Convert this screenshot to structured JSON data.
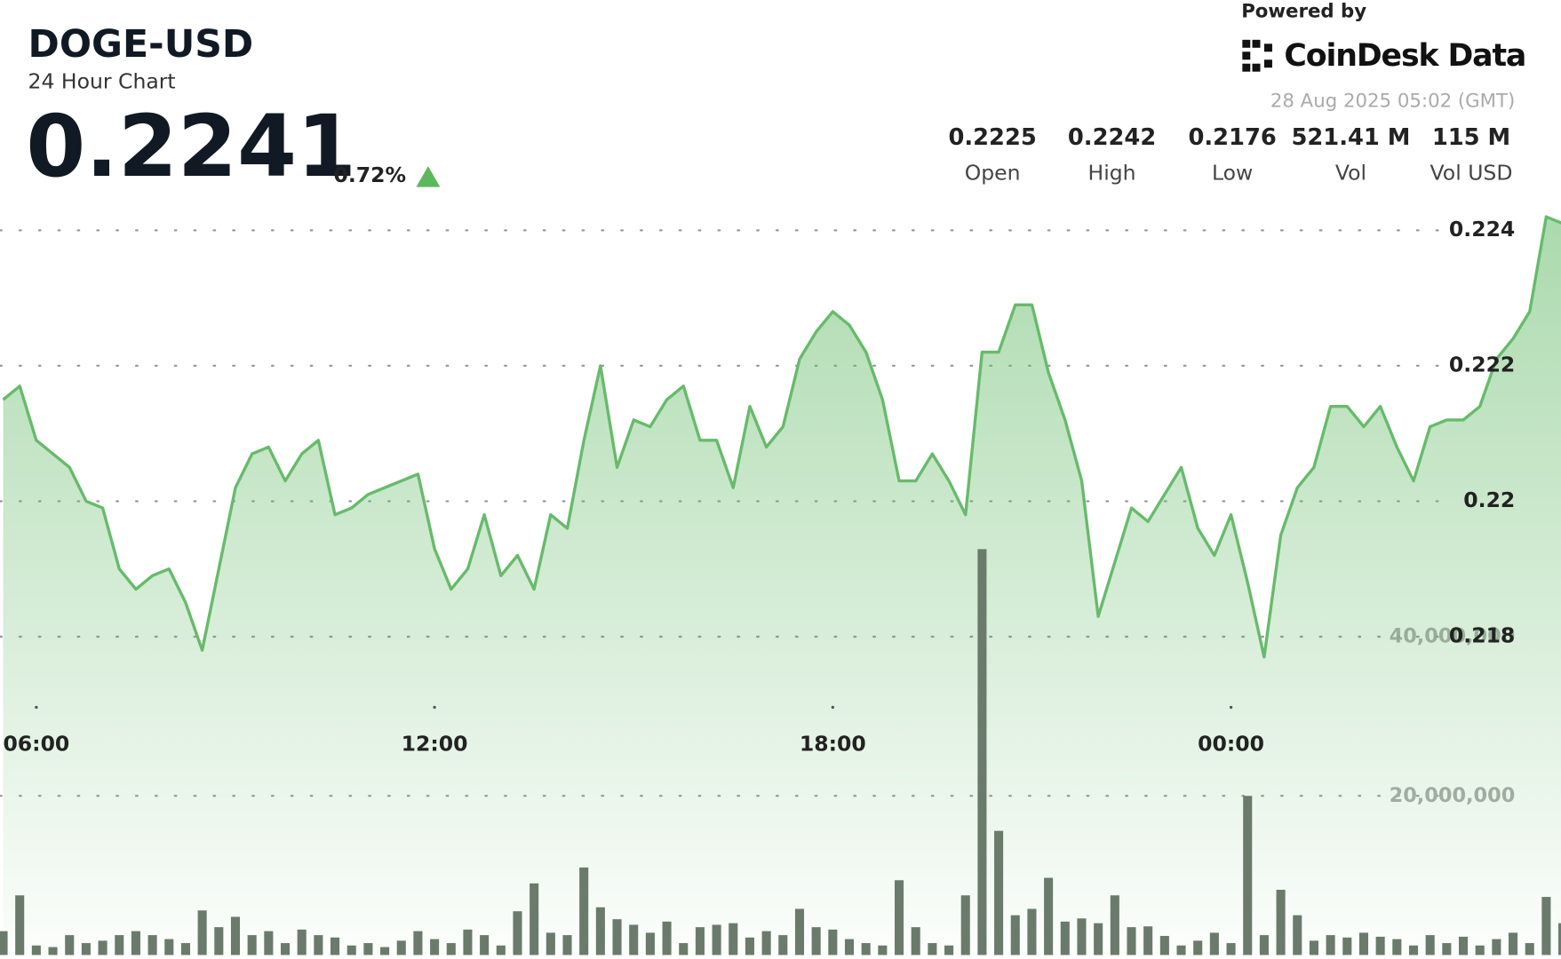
{
  "header": {
    "symbol": "DOGE-USD",
    "subtitle": "24 Hour Chart",
    "price": "0.2241",
    "change": "0.72%",
    "powered_by": "Powered by",
    "brand": "CoinDesk Data",
    "timestamp": "28 Aug 2025 05:02 (GMT)",
    "stats": [
      {
        "value": "0.2225",
        "label": "Open"
      },
      {
        "value": "0.2242",
        "label": "High"
      },
      {
        "value": "0.2176",
        "label": "Low"
      },
      {
        "value": "521.41 M",
        "label": "Vol"
      },
      {
        "value": "115 M",
        "label": "Vol USD"
      }
    ]
  },
  "chart_data": {
    "type": "line",
    "categories": [
      "05:30",
      "05:45",
      "06:00",
      "06:15",
      "06:30",
      "06:45",
      "07:00",
      "07:15",
      "07:30",
      "07:45",
      "08:00",
      "08:15",
      "08:30",
      "08:45",
      "09:00",
      "09:15",
      "09:30",
      "09:45",
      "10:00",
      "10:15",
      "10:30",
      "10:45",
      "11:00",
      "11:15",
      "11:30",
      "11:45",
      "12:00",
      "12:15",
      "12:30",
      "12:45",
      "13:00",
      "13:15",
      "13:30",
      "13:45",
      "14:00",
      "14:15",
      "14:30",
      "14:45",
      "15:00",
      "15:15",
      "15:30",
      "15:45",
      "16:00",
      "16:15",
      "16:30",
      "16:45",
      "17:00",
      "17:15",
      "17:30",
      "17:45",
      "18:00",
      "18:15",
      "18:30",
      "18:45",
      "19:00",
      "19:15",
      "19:30",
      "19:45",
      "20:00",
      "20:15",
      "20:30",
      "20:45",
      "21:00",
      "21:15",
      "21:30",
      "21:45",
      "22:00",
      "22:15",
      "22:30",
      "22:45",
      "23:00",
      "23:15",
      "23:30",
      "23:45",
      "00:00",
      "00:15",
      "00:30",
      "00:45",
      "01:00",
      "01:15",
      "01:30",
      "01:45",
      "02:00",
      "02:15",
      "02:30",
      "02:45",
      "03:00",
      "03:15",
      "03:30",
      "03:45",
      "04:00",
      "04:15",
      "04:30",
      "04:45",
      "05:00"
    ],
    "xticks": [
      "06:00",
      "12:00",
      "18:00",
      "00:00"
    ],
    "series": [
      {
        "name": "Price",
        "color": "#66bb6a",
        "values": [
          0.2215,
          0.2217,
          0.2209,
          0.2207,
          0.2205,
          0.22,
          0.2199,
          0.219,
          0.2187,
          0.2189,
          0.219,
          0.2185,
          0.2178,
          0.219,
          0.2202,
          0.2207,
          0.2208,
          0.2203,
          0.2207,
          0.2209,
          0.2198,
          0.2199,
          0.2201,
          0.2202,
          0.2203,
          0.2204,
          0.2193,
          0.2187,
          0.219,
          0.2198,
          0.2189,
          0.2192,
          0.2187,
          0.2198,
          0.2196,
          0.2209,
          0.222,
          0.2205,
          0.2212,
          0.2211,
          0.2215,
          0.2217,
          0.2209,
          0.2209,
          0.2202,
          0.2214,
          0.2208,
          0.2211,
          0.2221,
          0.2225,
          0.2228,
          0.2226,
          0.2222,
          0.2215,
          0.2203,
          0.2203,
          0.2207,
          0.2203,
          0.2198,
          0.2222,
          0.2222,
          0.2229,
          0.2229,
          0.2219,
          0.2212,
          0.2203,
          0.2183,
          0.2191,
          0.2199,
          0.2197,
          0.2201,
          0.2205,
          0.2196,
          0.2192,
          0.2198,
          0.2188,
          0.2177,
          0.2195,
          0.2202,
          0.2205,
          0.2214,
          0.2214,
          0.2211,
          0.2214,
          0.2208,
          0.2203,
          0.2211,
          0.2212,
          0.2212,
          0.2214,
          0.2221,
          0.2224,
          0.2228,
          0.2242,
          0.2241
        ]
      },
      {
        "name": "Volume",
        "color": "#6b7b6b",
        "axis": "y2",
        "values": [
          3000000,
          7500000,
          1200000,
          1000000,
          2500000,
          1500000,
          1800000,
          2500000,
          3000000,
          2500000,
          2000000,
          1500000,
          5600000,
          3500000,
          4800000,
          2500000,
          3000000,
          1500000,
          3200000,
          2500000,
          2200000,
          1200000,
          1500000,
          1000000,
          1800000,
          3000000,
          2000000,
          1500000,
          3200000,
          2500000,
          1200000,
          5500000,
          9000000,
          2800000,
          2500000,
          11000000,
          6000000,
          4500000,
          3800000,
          2800000,
          4200000,
          1500000,
          3500000,
          3800000,
          4000000,
          2200000,
          3000000,
          2500000,
          5800000,
          3500000,
          3200000,
          2000000,
          1500000,
          1200000,
          9400000,
          3500000,
          1500000,
          1200000,
          7500000,
          51000000,
          15600000,
          5000000,
          5800000,
          9700000,
          4200000,
          4600000,
          4000000,
          7500000,
          3500000,
          3600000,
          2400000,
          1200000,
          1800000,
          2800000,
          1500000,
          20000000,
          2500000,
          8200000,
          5000000,
          1800000,
          2500000,
          2200000,
          2800000,
          2300000,
          2000000,
          1200000,
          2500000,
          1500000,
          2300000,
          1200000,
          2000000,
          2800000,
          1500000,
          7300000,
          4000000
        ]
      }
    ],
    "ylim": [
      0.2133,
      0.2274
    ],
    "yticks": [
      0.218,
      0.22,
      0.222,
      0.224
    ],
    "y2lim": [
      0,
      120000000
    ],
    "y2ticks": [
      {
        "value": 20000000,
        "label": "20,000,000"
      },
      {
        "value": 40000000,
        "label": "40,000,000"
      }
    ],
    "grid": true
  }
}
